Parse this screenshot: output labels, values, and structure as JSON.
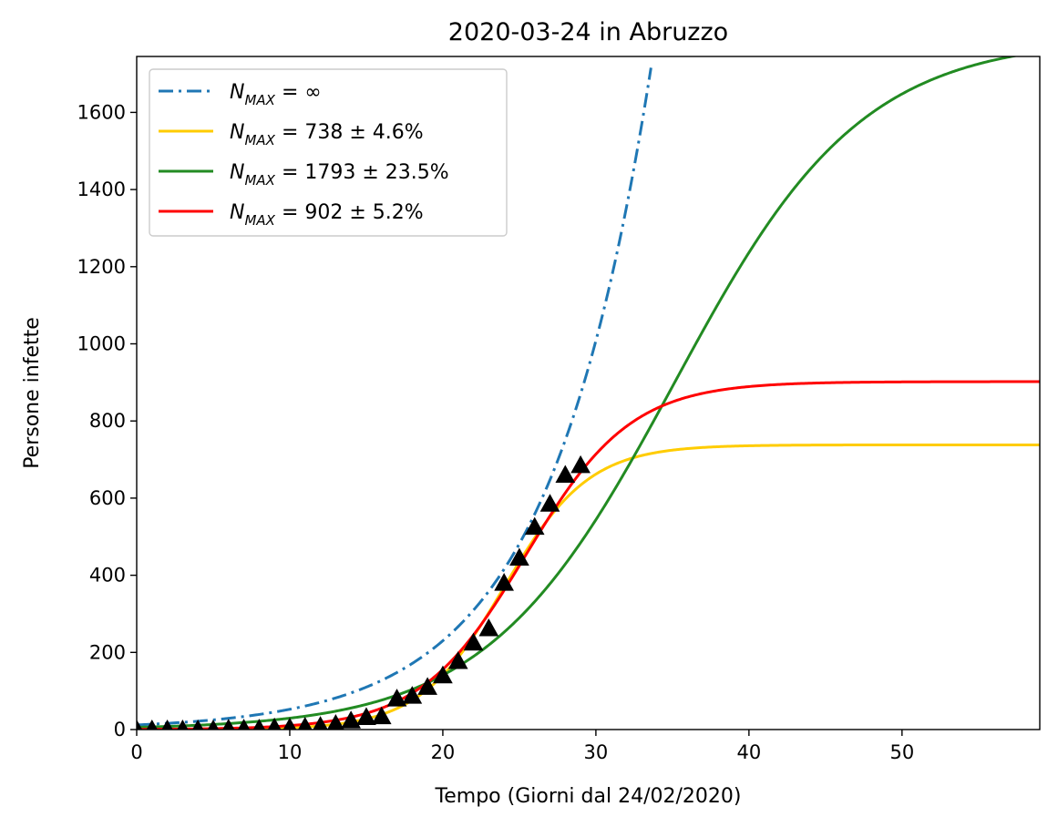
{
  "chart_data": {
    "type": "line",
    "title": "2020-03-24 in Abruzzo",
    "xlabel": "Tempo (Giorni dal 24/02/2020)",
    "ylabel": "Persone infette",
    "xlim": [
      0,
      59
    ],
    "ylim": [
      0,
      1745
    ],
    "xticks": [
      0,
      10,
      20,
      30,
      40,
      50
    ],
    "yticks": [
      0,
      200,
      400,
      600,
      800,
      1000,
      1200,
      1400,
      1600
    ],
    "grid": false,
    "legend_position": "top-left",
    "series": [
      {
        "name": "N_MAX = ∞",
        "legend_main": "N",
        "legend_sub": "MAX",
        "legend_rest": " = ∞",
        "color": "#1f77b4",
        "style": "dashdot",
        "model": "exponential",
        "a": 12.0,
        "b": 0.1477,
        "x_end": 33.6
      },
      {
        "name": "N_MAX = 738 ± 4.6%",
        "legend_main": "N",
        "legend_sub": "MAX",
        "legend_rest": " = 738 ± 4.6%",
        "color": "#ffcc00",
        "style": "solid",
        "model": "logistic",
        "K": 738,
        "r": 0.361,
        "t0": 24.0
      },
      {
        "name": "N_MAX = 1793 ± 23.5%",
        "legend_main": "N",
        "legend_sub": "MAX",
        "legend_rest": " = 1793 ± 23.5%",
        "color": "#228b22",
        "style": "solid",
        "model": "logistic",
        "K": 1793,
        "r": 0.163,
        "t0": 35.1
      },
      {
        "name": "N_MAX = 902 ± 5.2%",
        "legend_main": "N",
        "legend_sub": "MAX",
        "legend_rest": " = 902 ± 5.2%",
        "color": "#ff0000",
        "style": "solid",
        "model": "logistic",
        "K": 902,
        "r": 0.29,
        "t0": 25.4
      }
    ],
    "observed": {
      "marker": "triangle",
      "color": "#000000",
      "points": [
        [
          0,
          0
        ],
        [
          1,
          0
        ],
        [
          2,
          0
        ],
        [
          3,
          0
        ],
        [
          4,
          0
        ],
        [
          5,
          0
        ],
        [
          6,
          2
        ],
        [
          7,
          2
        ],
        [
          8,
          2
        ],
        [
          9,
          5
        ],
        [
          10,
          5
        ],
        [
          11,
          7
        ],
        [
          12,
          9
        ],
        [
          13,
          14
        ],
        [
          14,
          23
        ],
        [
          15,
          32
        ],
        [
          16,
          34
        ],
        [
          17,
          80
        ],
        [
          18,
          87
        ],
        [
          19,
          110
        ],
        [
          20,
          140
        ],
        [
          21,
          177
        ],
        [
          22,
          225
        ],
        [
          23,
          262
        ],
        [
          24,
          380
        ],
        [
          25,
          445
        ],
        [
          26,
          525
        ],
        [
          27,
          585
        ],
        [
          28,
          660
        ],
        [
          29,
          685
        ]
      ]
    }
  }
}
